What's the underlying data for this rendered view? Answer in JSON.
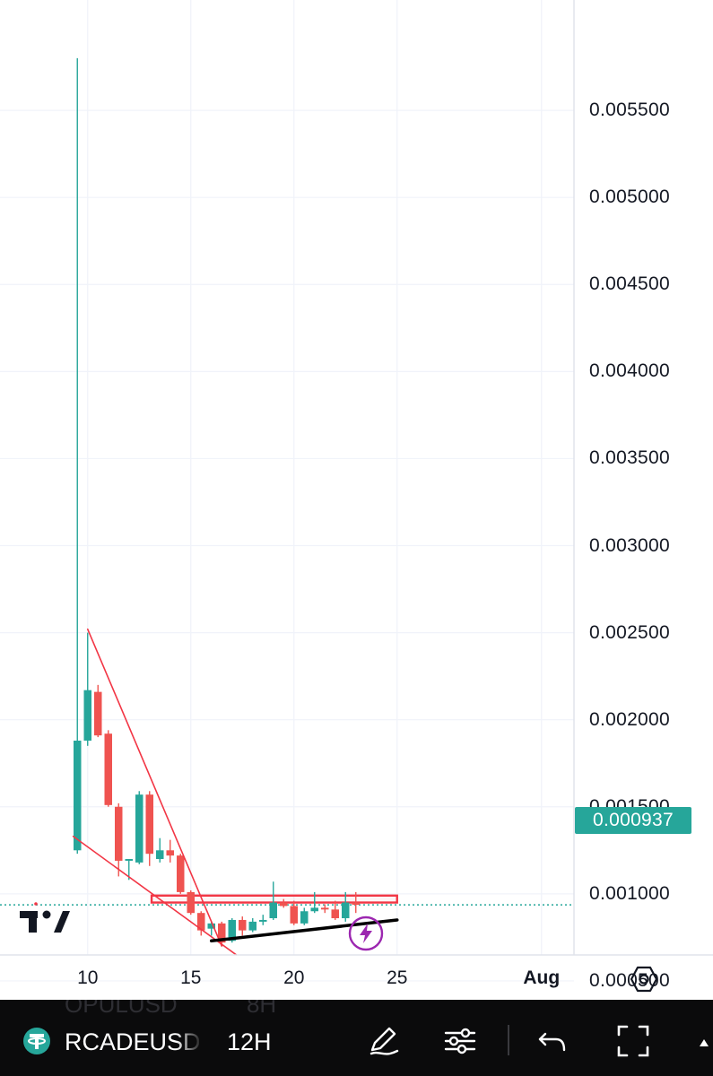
{
  "chart_data": {
    "type": "candlestick",
    "symbol": "RCADEUSDT",
    "interval": "12H",
    "y_axis": {
      "ticks": [
        "0.005500",
        "0.005000",
        "0.004500",
        "0.004000",
        "0.003500",
        "0.003000",
        "0.002500",
        "0.002000",
        "0.001500",
        "0.001000",
        "0.000500"
      ],
      "range": [
        0.0002,
        0.0058
      ]
    },
    "x_axis": {
      "ticks": [
        {
          "label": "10",
          "day": 10,
          "bold": false
        },
        {
          "label": "15",
          "day": 15,
          "bold": false
        },
        {
          "label": "20",
          "day": 20,
          "bold": false
        },
        {
          "label": "25",
          "day": 25,
          "bold": false
        },
        {
          "label": "Aug",
          "day": 32,
          "bold": true
        }
      ],
      "range": [
        5.75,
        33.3
      ]
    },
    "last_price": "0.000937",
    "candles": [
      {
        "t": 9.5,
        "o": 0.00125,
        "h": 0.0058,
        "l": 0.00123,
        "c": 0.00188
      },
      {
        "t": 10.0,
        "o": 0.00188,
        "h": 0.0025,
        "l": 0.00185,
        "c": 0.00217
      },
      {
        "t": 10.5,
        "o": 0.00216,
        "h": 0.0022,
        "l": 0.0019,
        "c": 0.00191
      },
      {
        "t": 11.0,
        "o": 0.00192,
        "h": 0.00194,
        "l": 0.0015,
        "c": 0.00151
      },
      {
        "t": 11.5,
        "o": 0.0015,
        "h": 0.00152,
        "l": 0.0011,
        "c": 0.00119
      },
      {
        "t": 12.0,
        "o": 0.00119,
        "h": 0.0012,
        "l": 0.00108,
        "c": 0.0012
      },
      {
        "t": 12.5,
        "o": 0.00118,
        "h": 0.00159,
        "l": 0.00117,
        "c": 0.00157
      },
      {
        "t": 13.0,
        "o": 0.00157,
        "h": 0.00159,
        "l": 0.00116,
        "c": 0.00123
      },
      {
        "t": 13.5,
        "o": 0.0012,
        "h": 0.00132,
        "l": 0.00118,
        "c": 0.00125
      },
      {
        "t": 14.0,
        "o": 0.00125,
        "h": 0.00131,
        "l": 0.00118,
        "c": 0.00122
      },
      {
        "t": 14.5,
        "o": 0.00122,
        "h": 0.00123,
        "l": 0.001,
        "c": 0.00101
      },
      {
        "t": 15.0,
        "o": 0.00101,
        "h": 0.00102,
        "l": 0.00088,
        "c": 0.00089
      },
      {
        "t": 15.5,
        "o": 0.00089,
        "h": 0.0009,
        "l": 0.00076,
        "c": 0.00079
      },
      {
        "t": 16.0,
        "o": 0.0008,
        "h": 0.00084,
        "l": 0.00076,
        "c": 0.00083
      },
      {
        "t": 16.5,
        "o": 0.00083,
        "h": 0.00084,
        "l": 0.0007,
        "c": 0.00072
      },
      {
        "t": 17.0,
        "o": 0.00073,
        "h": 0.00086,
        "l": 0.00072,
        "c": 0.00085
      },
      {
        "t": 17.5,
        "o": 0.00085,
        "h": 0.00087,
        "l": 0.00076,
        "c": 0.00079
      },
      {
        "t": 18.0,
        "o": 0.00079,
        "h": 0.00086,
        "l": 0.00078,
        "c": 0.00084
      },
      {
        "t": 18.5,
        "o": 0.00084,
        "h": 0.00088,
        "l": 0.00082,
        "c": 0.00085
      },
      {
        "t": 19.0,
        "o": 0.00086,
        "h": 0.00107,
        "l": 0.00085,
        "c": 0.00095
      },
      {
        "t": 19.5,
        "o": 0.00095,
        "h": 0.00097,
        "l": 0.00092,
        "c": 0.00093
      },
      {
        "t": 20.0,
        "o": 0.00093,
        "h": 0.00096,
        "l": 0.00082,
        "c": 0.00083
      },
      {
        "t": 20.5,
        "o": 0.00083,
        "h": 0.00092,
        "l": 0.00082,
        "c": 0.0009
      },
      {
        "t": 21.0,
        "o": 0.0009,
        "h": 0.00101,
        "l": 0.00089,
        "c": 0.00092
      },
      {
        "t": 21.5,
        "o": 0.00092,
        "h": 0.00094,
        "l": 0.00089,
        "c": 0.00091
      },
      {
        "t": 22.0,
        "o": 0.00091,
        "h": 0.00096,
        "l": 0.00085,
        "c": 0.00086
      },
      {
        "t": 22.5,
        "o": 0.00086,
        "h": 0.00101,
        "l": 0.00084,
        "c": 0.00095
      },
      {
        "t": 23.0,
        "o": 0.00095,
        "h": 0.00101,
        "l": 0.00089,
        "c": 0.000937
      }
    ],
    "drawings": [
      {
        "kind": "line",
        "color": "#f23645",
        "from": {
          "t": 10.0,
          "p": 0.00252
        },
        "to": {
          "t": 16.5,
          "p": 0.0007
        }
      },
      {
        "kind": "line",
        "color": "#f23645",
        "from": {
          "t": 9.3,
          "p": 0.00133
        },
        "to": {
          "t": 17.2,
          "p": 0.00065
        }
      },
      {
        "kind": "line",
        "color": "#000000",
        "from": {
          "t": 16.0,
          "p": 0.00073
        },
        "to": {
          "t": 25.0,
          "p": 0.00085
        }
      },
      {
        "kind": "rectangle",
        "color": "#f23645",
        "from": {
          "t": 13.1,
          "p": 0.00099
        },
        "to": {
          "t": 25.0,
          "p": 0.00095
        }
      }
    ],
    "colors": {
      "up": "#26a69a",
      "down": "#ef5350",
      "drawing": "#f23645",
      "support": "#000000",
      "last_price": "#26a69a",
      "grid": "#f0f3fa",
      "axis_text": "#131722"
    },
    "grid": true
  },
  "toolbar": {
    "symbol": "RCADEUSDT",
    "interval": "12H",
    "ghost_symbol": "OPULUSD",
    "ghost_interval": "8H",
    "icons": [
      "tether-icon",
      "pencil-icon",
      "sliders-icon",
      "undo-icon",
      "fullscreen-icon"
    ]
  }
}
